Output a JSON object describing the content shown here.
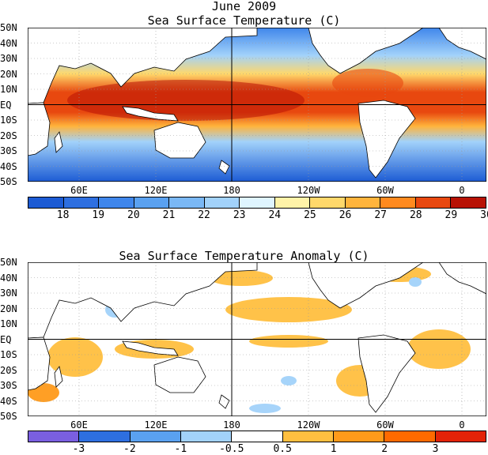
{
  "top_panel": {
    "title": "June 2009",
    "subtitle": "Sea Surface Temperature (C)",
    "lat_labels": [
      "50N",
      "40N",
      "30N",
      "20N",
      "10N",
      "EQ",
      "10S",
      "20S",
      "30S",
      "40S",
      "50S"
    ],
    "lon_labels": [
      "60E",
      "120E",
      "180",
      "120W",
      "60W",
      "0"
    ],
    "colorbar": {
      "colors": [
        "#1c5bd4",
        "#2e6fe0",
        "#3f86eb",
        "#5aa1f0",
        "#7ab8f5",
        "#a2d2fa",
        "#dff5ff",
        "#fff3a8",
        "#ffd86b",
        "#ffb43c",
        "#ff8a1f",
        "#e8480f",
        "#b81205"
      ],
      "labels": [
        "18",
        "19",
        "20",
        "21",
        "22",
        "23",
        "24",
        "25",
        "26",
        "27",
        "28",
        "29",
        "30"
      ]
    }
  },
  "bottom_panel": {
    "title": "Sea Surface Temperature Anomaly (C)",
    "lat_labels": [
      "50N",
      "40N",
      "30N",
      "20N",
      "10N",
      "EQ",
      "10S",
      "20S",
      "30S",
      "40S",
      "50S"
    ],
    "lon_labels": [
      "60E",
      "120E",
      "180",
      "120W",
      "60W",
      "0"
    ],
    "colorbar": {
      "colors": [
        "#7a5fe0",
        "#2e6fe0",
        "#5aa1f0",
        "#a2d2fa",
        "#ffffff",
        "#ffbf40",
        "#ff9a1a",
        "#ff6a00",
        "#e32308"
      ],
      "labels": [
        "-3",
        "-2",
        "-1",
        "-0.5",
        "0.5",
        "1",
        "2",
        "3"
      ]
    }
  },
  "colors": {
    "land": "#ffffff",
    "coast": "#000000",
    "grid": "#9a9a9a"
  }
}
